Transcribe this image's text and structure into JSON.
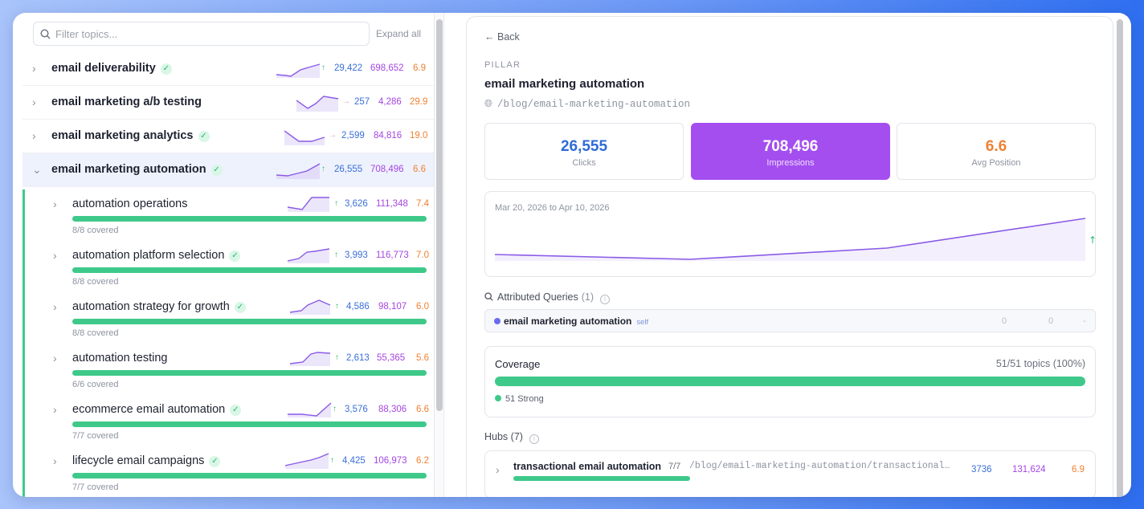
{
  "left": {
    "filter_placeholder": "Filter topics...",
    "expand_all": "Expand all",
    "topics": [
      {
        "title": "email deliverability",
        "verified": true,
        "trend": "up",
        "clicks": "29,422",
        "impressions": "698,652",
        "position": "6.9"
      },
      {
        "title": "email marketing a/b testing",
        "verified": false,
        "trend": "flat",
        "clicks": "257",
        "impressions": "4,286",
        "position": "29.9"
      },
      {
        "title": "email marketing analytics",
        "verified": true,
        "trend": "flat",
        "clicks": "2,599",
        "impressions": "84,816",
        "position": "19.0"
      },
      {
        "title": "email marketing automation",
        "verified": true,
        "trend": "up",
        "clicks": "26,555",
        "impressions": "708,496",
        "position": "6.6"
      }
    ],
    "subtopics": [
      {
        "title": "automation operations",
        "verified": false,
        "clicks": "3,626",
        "impressions": "111,348",
        "position": "7.4",
        "covered": "8/8 covered",
        "coverage_pct": 100
      },
      {
        "title": "automation platform selection",
        "verified": true,
        "clicks": "3,993",
        "impressions": "116,773",
        "position": "7.0",
        "covered": "8/8 covered",
        "coverage_pct": 100
      },
      {
        "title": "automation strategy for growth",
        "verified": true,
        "clicks": "4,586",
        "impressions": "98,107",
        "position": "6.0",
        "covered": "8/8 covered",
        "coverage_pct": 100
      },
      {
        "title": "automation testing",
        "verified": false,
        "clicks": "2,613",
        "impressions": "55,365",
        "position": "5.6",
        "covered": "6/6 covered",
        "coverage_pct": 100
      },
      {
        "title": "ecommerce email automation",
        "verified": true,
        "clicks": "3,576",
        "impressions": "88,306",
        "position": "6.6",
        "covered": "7/7 covered",
        "coverage_pct": 100
      },
      {
        "title": "lifecycle email campaigns",
        "verified": true,
        "clicks": "4,425",
        "impressions": "106,973",
        "position": "6.2",
        "covered": "7/7 covered",
        "coverage_pct": 100
      }
    ]
  },
  "detail": {
    "back": "Back",
    "kind": "PILLAR",
    "title": "email marketing automation",
    "url": "/blog/email-marketing-automation",
    "metrics": [
      {
        "value": "26,555",
        "label": "Clicks",
        "color": "#2f6bd8"
      },
      {
        "value": "708,496",
        "label": "Impressions",
        "color": "#ffffff"
      },
      {
        "value": "6.6",
        "label": "Avg Position",
        "color": "#ef8132"
      }
    ],
    "chart_range": "Mar 20, 2026 to Apr 10, 2026",
    "attributed": {
      "label": "Attributed Queries",
      "count": "(1)",
      "query": "email marketing automation",
      "tag": "self",
      "clicks": "0",
      "impressions": "0",
      "position": "-"
    },
    "coverage": {
      "label": "Coverage",
      "summary": "51/51 topics (100%)",
      "strong": "51 Strong",
      "pct": 100
    },
    "hubs": {
      "label": "Hubs (7)",
      "items": [
        {
          "title": "transactional email automation",
          "ratio": "7/7",
          "url": "/blog/email-marketing-automation/transactional-automation",
          "clicks": "3736",
          "impressions": "131,624",
          "position": "6.9"
        }
      ]
    }
  },
  "colors": {
    "accent_purple": "#a44ef0",
    "green": "#3ec98a",
    "blue": "#3a6fd8",
    "orange": "#ef8132"
  }
}
